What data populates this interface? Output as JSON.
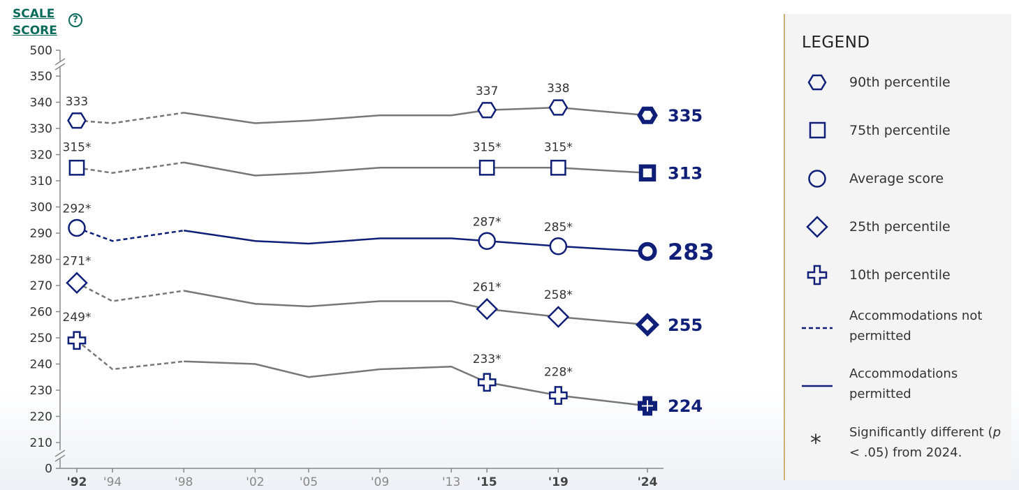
{
  "header": {
    "scale_score_line1": "SCALE",
    "scale_score_line2": "SCORE",
    "help": "?"
  },
  "legend": {
    "title": "LEGEND",
    "items": [
      {
        "symbol": "hexagon-icon",
        "label": "90th percentile"
      },
      {
        "symbol": "square-icon",
        "label": "75th percentile"
      },
      {
        "symbol": "circle-icon",
        "label": "Average score"
      },
      {
        "symbol": "diamond-icon",
        "label": "25th percentile"
      },
      {
        "symbol": "cross-icon",
        "label": "10th percentile"
      },
      {
        "symbol": "dashed-line-icon",
        "label": "Accommodations not permitted"
      },
      {
        "symbol": "solid-line-icon",
        "label": "Accommodations permitted"
      },
      {
        "symbol": "asterisk-icon",
        "label_pre": "Significantly different (",
        "label_italic": "p",
        "label_post": " < .05) from 2024.",
        "asterisk": "*"
      }
    ]
  },
  "chart_data": {
    "type": "line",
    "ylabel": "SCALE SCORE",
    "ylim": [
      210,
      350
    ],
    "yaxis_break_top": "500",
    "yaxis_break_bottom": "0",
    "yticks": [
      350,
      340,
      330,
      320,
      310,
      300,
      290,
      280,
      270,
      260,
      250,
      240,
      230,
      220,
      210
    ],
    "xticks": [
      {
        "year": 1992,
        "label": "'92",
        "bold": true
      },
      {
        "year": 1994,
        "label": "'94",
        "bold": false
      },
      {
        "year": 1998,
        "label": "'98",
        "bold": false
      },
      {
        "year": 2002,
        "label": "'02",
        "bold": false
      },
      {
        "year": 2005,
        "label": "'05",
        "bold": false
      },
      {
        "year": 2009,
        "label": "'09",
        "bold": false
      },
      {
        "year": 2013,
        "label": "'13",
        "bold": false
      },
      {
        "year": 2015,
        "label": "'15",
        "bold": true
      },
      {
        "year": 2019,
        "label": "'19",
        "bold": true
      },
      {
        "year": 2024,
        "label": "'24",
        "bold": true
      }
    ],
    "years": [
      1992,
      1994,
      1998,
      2002,
      2005,
      2009,
      2013,
      2015,
      2019,
      2024
    ],
    "accommodations_permitted_from": 1998,
    "colors": {
      "grey": "#777777",
      "navy": "#0f1f78"
    },
    "series": [
      {
        "name": "90th percentile",
        "marker": "hexagon",
        "color": "grey",
        "values": [
          333,
          332,
          336,
          332,
          333,
          335,
          335,
          337,
          338,
          335
        ],
        "labels": {
          "1992": "333",
          "2015": "337",
          "2019": "338"
        },
        "final_label": "335"
      },
      {
        "name": "75th percentile",
        "marker": "square",
        "color": "grey",
        "values": [
          315,
          313,
          317,
          312,
          313,
          315,
          315,
          315,
          315,
          313
        ],
        "labels": {
          "1992": "315*",
          "2015": "315*",
          "2019": "315*"
        },
        "final_label": "313"
      },
      {
        "name": "Average score",
        "marker": "circle",
        "color": "navy",
        "values": [
          292,
          287,
          291,
          287,
          286,
          288,
          288,
          287,
          285,
          283
        ],
        "labels": {
          "1992": "292*",
          "2015": "287*",
          "2019": "285*"
        },
        "final_label": "283"
      },
      {
        "name": "25th percentile",
        "marker": "diamond",
        "color": "grey",
        "values": [
          271,
          264,
          268,
          263,
          262,
          264,
          264,
          261,
          258,
          255
        ],
        "labels": {
          "1992": "271*",
          "2015": "261*",
          "2019": "258*"
        },
        "final_label": "255"
      },
      {
        "name": "10th percentile",
        "marker": "cross",
        "color": "grey",
        "values": [
          249,
          238,
          241,
          240,
          235,
          238,
          239,
          233,
          228,
          224
        ],
        "labels": {
          "1992": "249*",
          "2015": "233*",
          "2019": "228*"
        },
        "final_label": "224"
      }
    ]
  }
}
